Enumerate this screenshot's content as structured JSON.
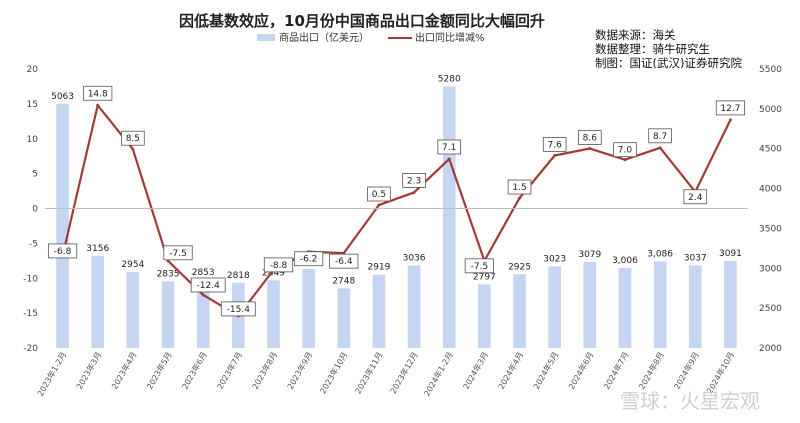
{
  "chart_data": {
    "type": "bar+line",
    "title": "因低基数效应，10月份中国商品出口金额同比大幅回升",
    "source_lines": [
      "数据来源：海关",
      "数据整理：骑牛研究生",
      "制图：国证(武汉)证券研究院"
    ],
    "categories": [
      "2023年1-2月",
      "2023年3月",
      "2023年4月",
      "2023年5月",
      "2023年6月",
      "2023年7月",
      "2023年8月",
      "2023年9月",
      "2023年10月",
      "2023年11月",
      "2023年12月",
      "2024年1-2月",
      "2024年3月",
      "2024年4月",
      "2024年5月",
      "2024年6月",
      "2024年7月",
      "2024年8月",
      "2024年9月",
      "2024年10月"
    ],
    "series": [
      {
        "name": "商品出口（亿美元）",
        "type": "bar",
        "axis": "right",
        "color": "#c5d7f0",
        "values": [
          5063,
          3156,
          2954,
          2835,
          2853,
          2818,
          2849,
          2991,
          2748,
          2919,
          3036,
          5280,
          2797,
          2925,
          3023,
          3079,
          3006,
          3086,
          3037,
          3091
        ],
        "labels": [
          "5063",
          "3156",
          "2954",
          "2835",
          "2853",
          "2818",
          "2849",
          "2991",
          "2748",
          "2919",
          "3036",
          "5280",
          "2797",
          "2925",
          "3023",
          "3079",
          "3,006",
          "3,086",
          "3037",
          "3091"
        ]
      },
      {
        "name": "出口同比增减%",
        "type": "line",
        "axis": "left",
        "color": "#a23b35",
        "values": [
          -6.8,
          14.8,
          8.5,
          -7.5,
          -12.4,
          -15.4,
          -8.8,
          -6.2,
          -6.4,
          0.5,
          2.3,
          7.1,
          -7.5,
          1.5,
          7.6,
          8.6,
          7.0,
          8.7,
          2.4,
          12.7
        ],
        "labels": [
          "-6.8",
          "14.8",
          "8.5",
          "-7.5",
          "-12.4",
          "-15.4",
          "-8.8",
          "-6.2",
          "-6.4",
          "0.5",
          "2.3",
          "7.1",
          "-7.5",
          "1.5",
          "7.6",
          "8.6",
          "7.0",
          "8.7",
          "2.4",
          "12.7"
        ]
      }
    ],
    "left_axis": {
      "min": -20,
      "max": 20,
      "step": 5,
      "ticks": [
        "20",
        "15",
        "10",
        "5",
        "0",
        "-5",
        "-10",
        "-15",
        "-20"
      ]
    },
    "right_axis": {
      "min": 2000,
      "max": 5500,
      "step": 500,
      "ticks": [
        "5500",
        "5000",
        "4500",
        "4000",
        "3500",
        "3000",
        "2500",
        "2000"
      ]
    },
    "grid": false,
    "legend_position": "top-left"
  },
  "watermark": "雪球：火星宏观"
}
